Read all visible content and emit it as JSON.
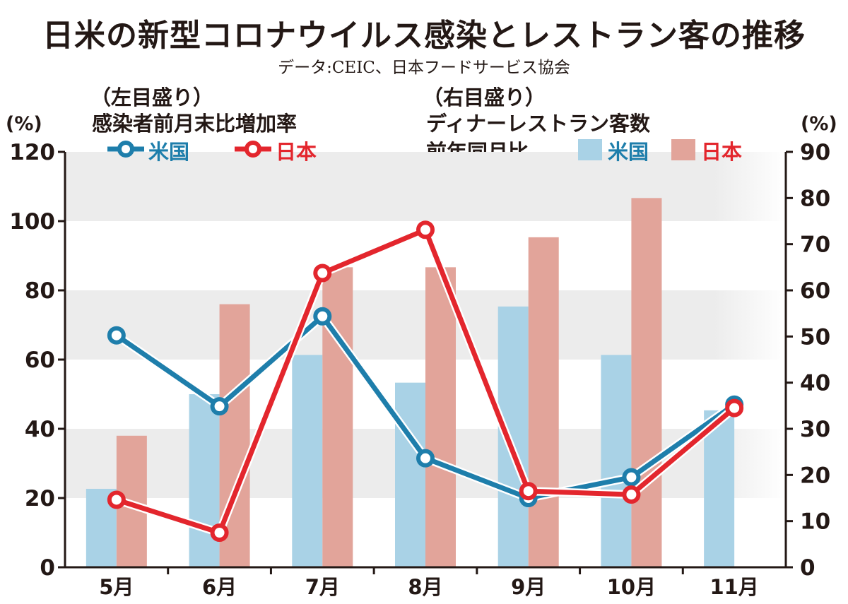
{
  "title": "日米の新型コロナウイルス感染とレストラン客の推移",
  "source": "データ:CEIC、日本フードサービス協会",
  "left_axis": {
    "note": "（左目盛り）",
    "label": "感染者前月末比増加率",
    "unit": "(%)"
  },
  "right_axis": {
    "note": "（右目盛り）",
    "label_line1": "ディナーレストラン客数",
    "label_line2": "前年同月比",
    "unit": "(%)"
  },
  "legend": {
    "line_us": "米国",
    "line_jp": "日本",
    "bar_us": "米国",
    "bar_jp": "日本"
  },
  "colors": {
    "line_us": "#1e7eab",
    "line_jp": "#e3262d",
    "bar_us": "#a9d2e6",
    "bar_jp": "#e2a49a",
    "band": "#ececec"
  },
  "chart_data": {
    "type": "bar+line",
    "categories": [
      "5月",
      "6月",
      "7月",
      "8月",
      "9月",
      "10月",
      "11月"
    ],
    "left_ylim": [
      0,
      120
    ],
    "left_ticks": [
      "0",
      "20",
      "40",
      "60",
      "80",
      "100",
      "120"
    ],
    "right_ylim": [
      0,
      90
    ],
    "right_ticks": [
      "0",
      "10",
      "20",
      "30",
      "40",
      "50",
      "60",
      "70",
      "80",
      "90"
    ],
    "bars": [
      {
        "name": "米国",
        "axis": "right",
        "values": [
          17,
          37.5,
          46,
          40,
          56.5,
          46,
          34
        ]
      },
      {
        "name": "日本",
        "axis": "right",
        "values": [
          28.5,
          57,
          65,
          65,
          71.5,
          80,
          null
        ]
      }
    ],
    "lines": [
      {
        "name": "米国",
        "axis": "left",
        "values": [
          67,
          46.5,
          72.5,
          31.5,
          20,
          26,
          47
        ]
      },
      {
        "name": "日本",
        "axis": "left",
        "values": [
          19.5,
          10,
          85,
          97.5,
          22,
          21,
          46
        ]
      }
    ]
  }
}
